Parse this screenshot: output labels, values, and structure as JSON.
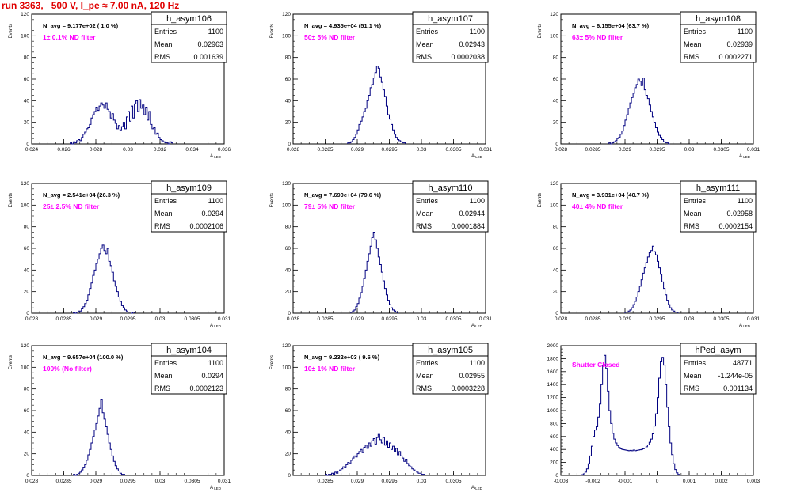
{
  "title": "run 3363,   500 V, I_pe ≈ 7.00 nA, 120 Hz",
  "colors": {
    "histogram": "#000080",
    "title": "#e00000",
    "filter_text": "#ff00ff",
    "axis": "#000000"
  },
  "chart_data": [
    {
      "type": "histogram",
      "name": "h_asym106",
      "n_avg_label": "N_avg = 9.177e+02 ( 1.0 %)",
      "filter_label": "1± 0.1% ND filter",
      "stats": {
        "entries": "1100",
        "mean": "0.02963",
        "rms": "0.001639"
      },
      "stat_labels": [
        "Entries",
        "Mean",
        "RMS"
      ],
      "ylabel": "Events",
      "xlabel": "A_LED",
      "xlim": [
        0.024,
        0.036
      ],
      "ylim": [
        0,
        120
      ],
      "xticks": [
        "0.024",
        "0.026",
        "0.028",
        "0.03",
        "0.032",
        "0.034",
        "0.036"
      ],
      "yticks": [
        "0",
        "20",
        "40",
        "60",
        "80",
        "100",
        "120"
      ],
      "bins": {
        "x_start": 0.0264,
        "bin_width": 0.0001,
        "counts": [
          1,
          0,
          2,
          1,
          3,
          4,
          3,
          6,
          9,
          11,
          14,
          15,
          18,
          24,
          27,
          30,
          34,
          31,
          35,
          38,
          36,
          33,
          38,
          32,
          30,
          24,
          28,
          22,
          19,
          14,
          17,
          13,
          16,
          20,
          14,
          25,
          30,
          21,
          35,
          24,
          37,
          40,
          30,
          41,
          33,
          36,
          27,
          34,
          22,
          30,
          18,
          14,
          15,
          9,
          10,
          6,
          4,
          3,
          2,
          1,
          1,
          0,
          2,
          1
        ]
      }
    },
    {
      "type": "histogram",
      "name": "h_asym107",
      "n_avg_label": "N_avg = 4.935e+04 (51.1 %)",
      "filter_label": "50± 5% ND filter",
      "stats": {
        "entries": "1100",
        "mean": "0.02943",
        "rms": "0.0002038"
      },
      "stat_labels": [
        "Entries",
        "Mean",
        "RMS"
      ],
      "ylabel": "Events",
      "xlabel": "A_LED",
      "xlim": [
        0.028,
        0.031
      ],
      "ylim": [
        0,
        120
      ],
      "xticks": [
        "0.028",
        "0.0285",
        "0.029",
        "0.0295",
        "0.03",
        "0.0305",
        "0.031"
      ],
      "yticks": [
        "0",
        "20",
        "40",
        "60",
        "80",
        "100",
        "120"
      ],
      "bins": {
        "x_start": 0.02885,
        "bin_width": 2.5e-05,
        "counts": [
          1,
          1,
          2,
          4,
          6,
          9,
          13,
          18,
          21,
          25,
          30,
          33,
          40,
          45,
          52,
          55,
          61,
          66,
          72,
          70,
          62,
          57,
          50,
          44,
          35,
          27,
          23,
          18,
          13,
          9,
          6,
          4,
          3,
          2,
          1,
          1
        ]
      }
    },
    {
      "type": "histogram",
      "name": "h_asym108",
      "n_avg_label": "N_avg = 6.155e+04 (63.7 %)",
      "filter_label": "63± 5% ND filter",
      "stats": {
        "entries": "1100",
        "mean": "0.02939",
        "rms": "0.0002271"
      },
      "stat_labels": [
        "Entries",
        "Mean",
        "RMS"
      ],
      "ylabel": "Events",
      "xlabel": "A_LED",
      "xlim": [
        0.028,
        0.031
      ],
      "ylim": [
        0,
        120
      ],
      "xticks": [
        "0.028",
        "0.0285",
        "0.029",
        "0.0295",
        "0.03",
        "0.0305",
        "0.031"
      ],
      "yticks": [
        "0",
        "20",
        "40",
        "60",
        "80",
        "100",
        "120"
      ],
      "bins": {
        "x_start": 0.02875,
        "bin_width": 2.5e-05,
        "counts": [
          1,
          0,
          1,
          2,
          3,
          5,
          6,
          9,
          12,
          17,
          22,
          27,
          33,
          38,
          43,
          47,
          52,
          55,
          60,
          58,
          54,
          61,
          50,
          45,
          42,
          36,
          30,
          25,
          20,
          15,
          11,
          8,
          6,
          4,
          2,
          1,
          1,
          0
        ]
      }
    },
    {
      "type": "histogram",
      "name": "h_asym109",
      "n_avg_label": "N_avg = 2.541e+04 (26.3 %)",
      "filter_label": "25± 2.5% ND filter",
      "stats": {
        "entries": "1100",
        "mean": "0.0294",
        "rms": "0.0002106"
      },
      "stat_labels": [
        "Entries",
        "Mean",
        "RMS"
      ],
      "ylabel": "Events",
      "xlabel": "A_LED",
      "xlim": [
        0.028,
        0.031
      ],
      "ylim": [
        0,
        120
      ],
      "xticks": [
        "0.028",
        "0.0285",
        "0.029",
        "0.0295",
        "0.03",
        "0.0305",
        "0.031"
      ],
      "yticks": [
        "0",
        "20",
        "40",
        "60",
        "80",
        "100",
        "120"
      ],
      "bins": {
        "x_start": 0.02865,
        "bin_width": 2.5e-05,
        "counts": [
          1,
          0,
          1,
          2,
          2,
          4,
          6,
          9,
          12,
          17,
          23,
          28,
          35,
          40,
          46,
          50,
          55,
          60,
          63,
          58,
          55,
          60,
          48,
          44,
          38,
          30,
          25,
          20,
          15,
          11,
          7,
          5,
          3,
          2,
          1,
          1,
          0,
          1
        ]
      }
    },
    {
      "type": "histogram",
      "name": "h_asym110",
      "n_avg_label": "N_avg = 7.690e+04 (79.6 %)",
      "filter_label": "79± 5% ND filter",
      "stats": {
        "entries": "1100",
        "mean": "0.02944",
        "rms": "0.0001884"
      },
      "stat_labels": [
        "Entries",
        "Mean",
        "RMS"
      ],
      "ylabel": "Events",
      "xlabel": "A_LED",
      "xlim": [
        0.028,
        0.031
      ],
      "ylim": [
        0,
        120
      ],
      "xticks": [
        "0.028",
        "0.0285",
        "0.029",
        "0.0295",
        "0.03",
        "0.0305",
        "0.031"
      ],
      "yticks": [
        "0",
        "20",
        "40",
        "60",
        "80",
        "100",
        "120"
      ],
      "bins": {
        "x_start": 0.0289,
        "bin_width": 2.5e-05,
        "counts": [
          1,
          2,
          3,
          6,
          9,
          14,
          19,
          25,
          32,
          40,
          48,
          55,
          62,
          70,
          75,
          68,
          60,
          52,
          45,
          38,
          30,
          23,
          17,
          12,
          8,
          5,
          3,
          2,
          1
        ]
      }
    },
    {
      "type": "histogram",
      "name": "h_asym111",
      "n_avg_label": "N_avg = 3.931e+04 (40.7 %)",
      "filter_label": "40± 4% ND filter",
      "stats": {
        "entries": "1100",
        "mean": "0.02958",
        "rms": "0.0002154"
      },
      "stat_labels": [
        "Entries",
        "Mean",
        "RMS"
      ],
      "ylabel": "Events",
      "xlabel": "A_LED",
      "xlim": [
        0.028,
        0.031
      ],
      "ylim": [
        0,
        120
      ],
      "xticks": [
        "0.028",
        "0.0285",
        "0.029",
        "0.0295",
        "0.03",
        "0.0305",
        "0.031"
      ],
      "yticks": [
        "0",
        "20",
        "40",
        "60",
        "80",
        "100",
        "120"
      ],
      "bins": {
        "x_start": 0.029,
        "bin_width": 2.5e-05,
        "counts": [
          1,
          1,
          2,
          3,
          5,
          8,
          11,
          15,
          20,
          25,
          31,
          37,
          42,
          47,
          52,
          56,
          58,
          62,
          57,
          54,
          48,
          42,
          36,
          29,
          23,
          17,
          12,
          8,
          5,
          3,
          2,
          1,
          1
        ]
      }
    },
    {
      "type": "histogram",
      "name": "h_asym104",
      "n_avg_label": "N_avg = 9.657e+04 (100.0 %)",
      "filter_label": "100% (No filter)",
      "stats": {
        "entries": "1100",
        "mean": "0.0294",
        "rms": "0.0002123"
      },
      "stat_labels": [
        "Entries",
        "Mean",
        "RMS"
      ],
      "ylabel": "Events",
      "xlabel": "A_LED",
      "xlim": [
        0.028,
        0.031
      ],
      "ylim": [
        0,
        120
      ],
      "xticks": [
        "0.028",
        "0.0285",
        "0.029",
        "0.0295",
        "0.03",
        "0.0305",
        "0.031"
      ],
      "yticks": [
        "0",
        "20",
        "40",
        "60",
        "80",
        "100",
        "120"
      ],
      "bins": {
        "x_start": 0.02865,
        "bin_width": 2.5e-05,
        "counts": [
          1,
          0,
          1,
          2,
          3,
          5,
          7,
          10,
          14,
          19,
          24,
          30,
          36,
          42,
          48,
          55,
          62,
          70,
          58,
          52,
          45,
          38,
          30,
          24,
          18,
          13,
          9,
          6,
          4,
          2,
          1,
          1
        ]
      }
    },
    {
      "type": "histogram",
      "name": "h_asym105",
      "n_avg_label": "N_avg = 9.232e+03 ( 9.6 %)",
      "filter_label": "10± 1% ND filter",
      "stats": {
        "entries": "1100",
        "mean": "0.02955",
        "rms": "0.0003228"
      },
      "stat_labels": [
        "Entries",
        "Mean",
        "RMS"
      ],
      "ylabel": "Events",
      "xlabel": "A_LED",
      "xlim": [
        0.028,
        0.031
      ],
      "ylim": [
        0,
        120
      ],
      "xticks": [
        "0.0285",
        "0.029",
        "0.0295",
        "0.03",
        "0.0305"
      ],
      "yticks": [
        "0",
        "20",
        "40",
        "60",
        "80",
        "100",
        "120"
      ],
      "bins": {
        "x_start": 0.0285,
        "bin_width": 2.5e-05,
        "counts": [
          1,
          0,
          1,
          1,
          2,
          1,
          3,
          2,
          4,
          5,
          6,
          8,
          7,
          10,
          12,
          11,
          14,
          16,
          18,
          17,
          20,
          22,
          24,
          21,
          26,
          28,
          25,
          30,
          27,
          32,
          34,
          29,
          35,
          38,
          33,
          30,
          35,
          28,
          32,
          26,
          30,
          24,
          27,
          22,
          25,
          19,
          22,
          18,
          16,
          13,
          15,
          11,
          9,
          8,
          6,
          5,
          4,
          3,
          2,
          2,
          1,
          1
        ]
      }
    },
    {
      "type": "histogram",
      "name": "hPed_asym",
      "n_avg_label": "",
      "filter_label": "Shutter Closed",
      "stats": {
        "entries": "48771",
        "mean": "-1.244e-05",
        "rms": "0.001134"
      },
      "stat_labels": [
        "Entries",
        "Mean",
        "RMS"
      ],
      "ylabel": "",
      "xlabel": "",
      "xlim": [
        -0.003,
        0.003
      ],
      "ylim": [
        0,
        2000
      ],
      "xticks": [
        "-0.003",
        "-0.002",
        "-0.001",
        "0",
        "0.001",
        "0.002",
        "0.003"
      ],
      "yticks": [
        "0",
        "200",
        "400",
        "600",
        "800",
        "1000",
        "1200",
        "1400",
        "1600",
        "1800",
        "2000"
      ],
      "bins": {
        "x_start": -0.0024,
        "bin_width": 5e-05,
        "counts": [
          5,
          10,
          25,
          50,
          100,
          180,
          300,
          450,
          600,
          700,
          750,
          900,
          1100,
          1400,
          1700,
          1850,
          1650,
          1300,
          1000,
          800,
          650,
          560,
          500,
          460,
          430,
          410,
          400,
          395,
          390,
          385,
          380,
          385,
          380,
          390,
          380,
          385,
          390,
          395,
          400,
          410,
          420,
          440,
          470,
          510,
          560,
          640,
          760,
          950,
          1200,
          1500,
          1750,
          1820,
          1700,
          1400,
          1050,
          750,
          500,
          320,
          180,
          90,
          40,
          15,
          5
        ]
      }
    }
  ]
}
